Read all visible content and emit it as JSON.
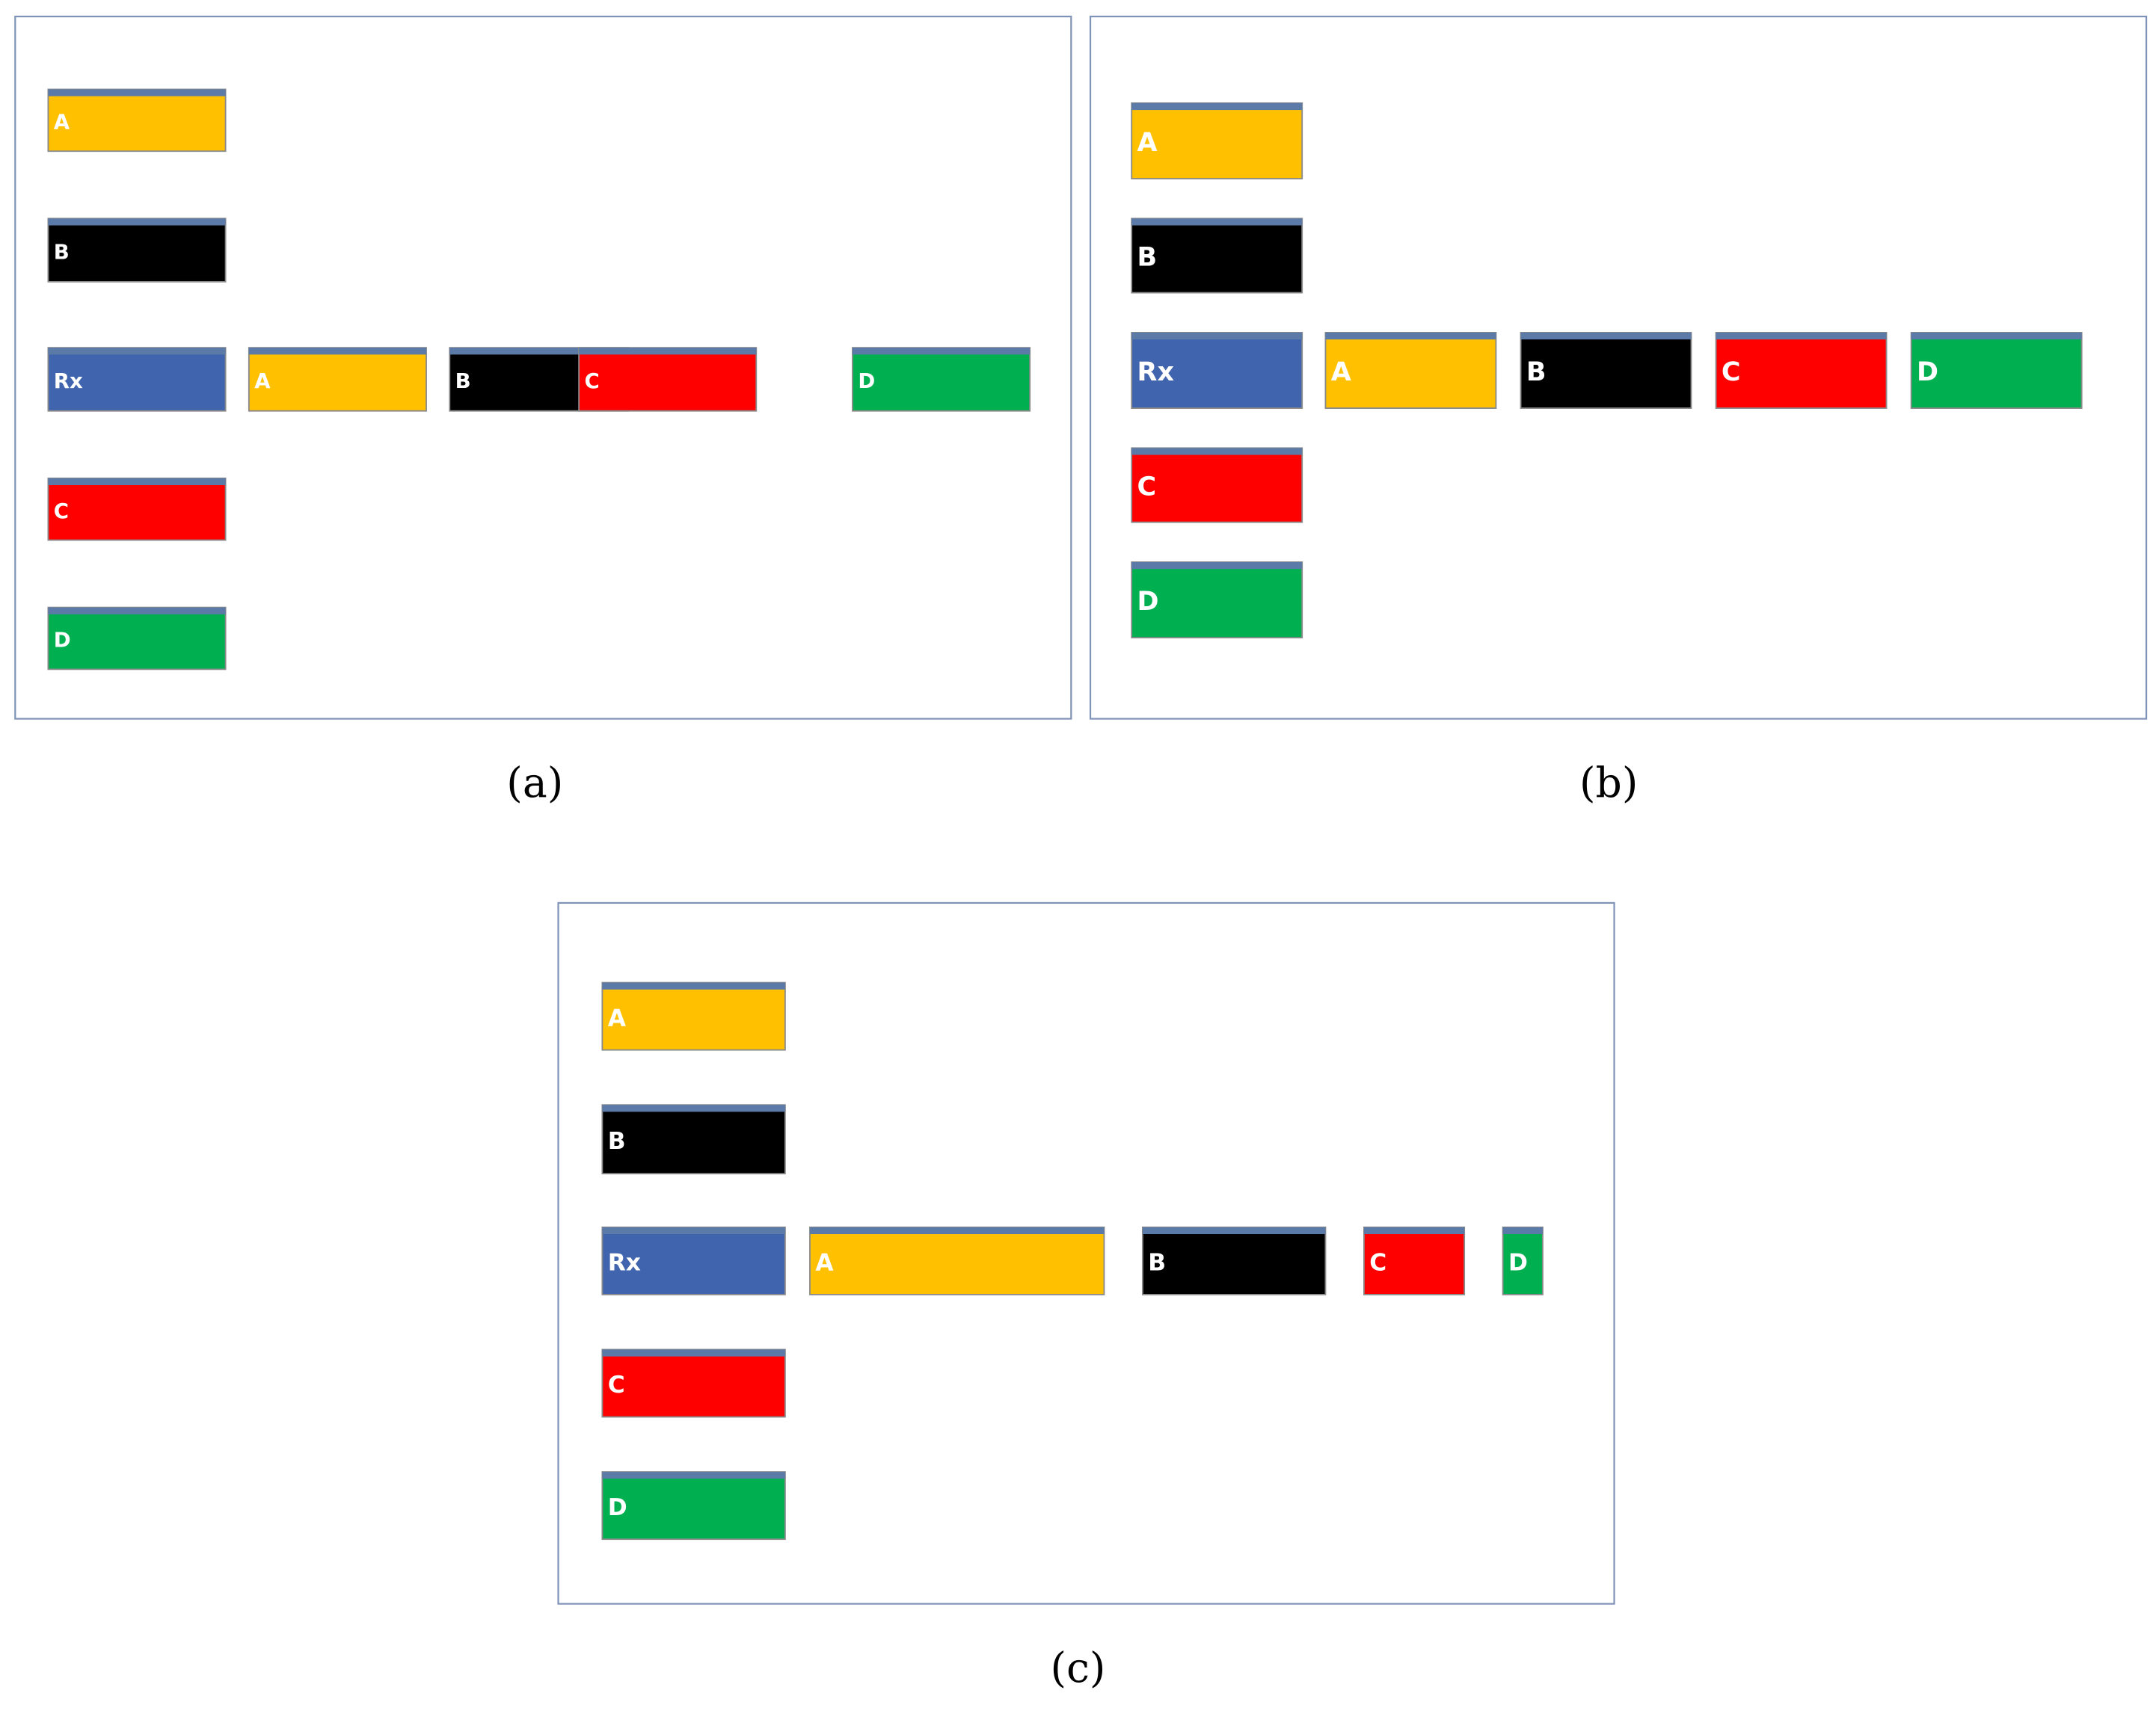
{
  "panels": [
    {
      "caption": "(a)",
      "column": [
        "A",
        "B",
        "C",
        "D"
      ],
      "row": [
        "Rx",
        "A",
        "B",
        "C",
        "D"
      ]
    },
    {
      "caption": "(b)",
      "column": [
        "A",
        "B",
        "C",
        "D"
      ],
      "row": [
        "Rx",
        "A",
        "B",
        "C",
        "D"
      ]
    },
    {
      "caption": "(c)",
      "column": [
        "A",
        "B",
        "C",
        "D"
      ],
      "row": [
        "Rx",
        "A",
        "B",
        "C",
        "D"
      ]
    }
  ]
}
